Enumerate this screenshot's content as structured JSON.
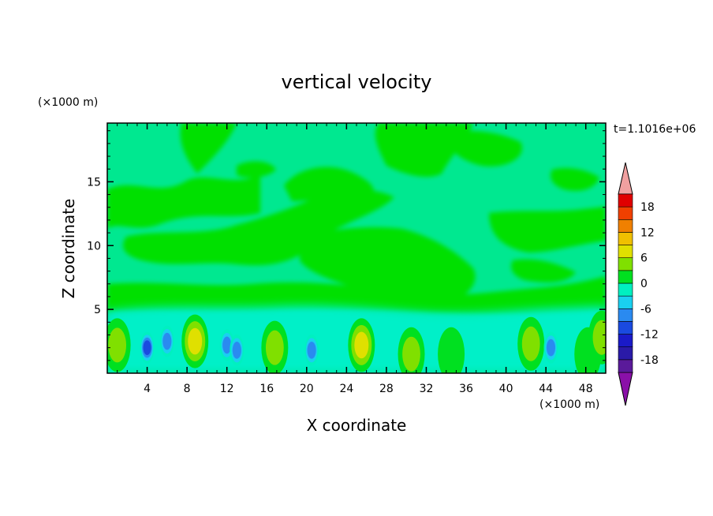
{
  "chart_data": {
    "type": "heatmap",
    "title": "vertical velocity",
    "xlabel": "X coordinate",
    "ylabel": "Z coordinate",
    "x_unit": "(×1000 m)",
    "y_unit": "(×1000 m)",
    "time_label": "t=1.1016e+06",
    "xlim": [
      0,
      50
    ],
    "ylim": [
      0,
      19.6
    ],
    "x_ticks": [
      4,
      8,
      12,
      16,
      20,
      24,
      28,
      32,
      36,
      40,
      44,
      48
    ],
    "y_ticks": [
      5,
      10,
      15
    ],
    "colorbar": {
      "levels": [
        -21,
        -18,
        -15,
        -12,
        -9,
        -6,
        -3,
        0,
        3,
        6,
        9,
        12,
        15,
        18,
        21
      ],
      "tick_labels": [
        "18",
        "12",
        "6",
        "0",
        "-6",
        "-12",
        "-18"
      ],
      "colors": [
        "#5a1a9a",
        "#2a1aa8",
        "#1a1ac8",
        "#1a4ae0",
        "#2a8af0",
        "#1ad0f0",
        "#00f0c0",
        "#00e020",
        "#80e000",
        "#e0e000",
        "#f0c000",
        "#f08000",
        "#f04000",
        "#e00000"
      ],
      "under_color": "#8a10a8",
      "over_color": "#f0a0a0"
    },
    "background_color": "#00e890",
    "features": [
      {
        "x": 1.0,
        "z": 2.2,
        "value": 6
      },
      {
        "x": 4.0,
        "z": 2.0,
        "value": -12
      },
      {
        "x": 6.0,
        "z": 2.5,
        "value": -9
      },
      {
        "x": 8.8,
        "z": 2.5,
        "value": 9
      },
      {
        "x": 12.0,
        "z": 2.2,
        "value": -9
      },
      {
        "x": 13.0,
        "z": 1.8,
        "value": -9
      },
      {
        "x": 16.8,
        "z": 2.0,
        "value": 6
      },
      {
        "x": 20.5,
        "z": 1.8,
        "value": -9
      },
      {
        "x": 25.5,
        "z": 2.2,
        "value": 9
      },
      {
        "x": 30.5,
        "z": 1.5,
        "value": 6
      },
      {
        "x": 34.5,
        "z": 1.5,
        "value": 3
      },
      {
        "x": 42.5,
        "z": 2.3,
        "value": 6
      },
      {
        "x": 44.5,
        "z": 2.0,
        "value": -9
      },
      {
        "x": 48.2,
        "z": 1.5,
        "value": 3
      },
      {
        "x": 49.6,
        "z": 2.8,
        "value": 6
      }
    ]
  }
}
